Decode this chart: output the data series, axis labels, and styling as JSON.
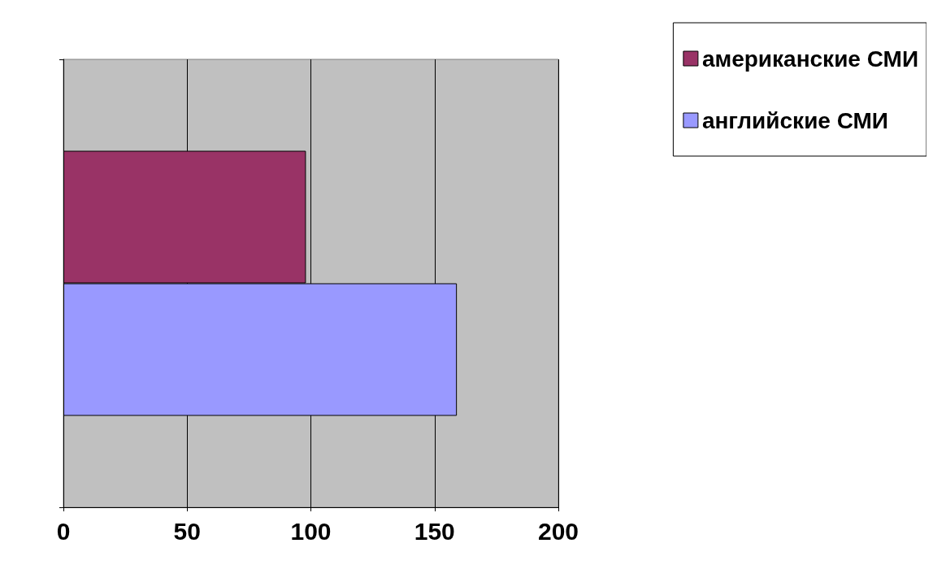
{
  "chart_data": {
    "type": "bar",
    "orientation": "horizontal",
    "categories": [
      null
    ],
    "series": [
      {
        "name": "американские СМИ",
        "color": "#993366",
        "values": [
          98
        ]
      },
      {
        "name": "английские СМИ",
        "color": "#9999ff",
        "values": [
          159
        ]
      }
    ],
    "xlim": [
      0,
      200
    ],
    "xticks": [
      0,
      50,
      100,
      150,
      200
    ],
    "grid": "x",
    "legend": "top right"
  }
}
